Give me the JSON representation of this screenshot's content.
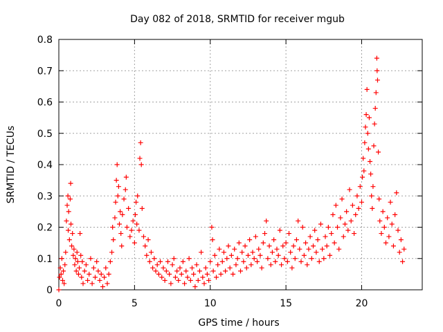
{
  "chart_data": {
    "type": "scatter",
    "title": "Day 082 of 2018, SRMTID for receiver mgub",
    "xlabel": "GPS time / hours",
    "ylabel": "SRMTID / TECUs",
    "xlim": [
      0,
      24
    ],
    "ylim": [
      0,
      0.8
    ],
    "xticks": [
      0,
      5,
      10,
      15,
      20
    ],
    "yticks": [
      0,
      0.1,
      0.2,
      0.3,
      0.4,
      0.5,
      0.6,
      0.7,
      0.8
    ],
    "xtick_labels": [
      "0",
      "5",
      "10",
      "15",
      "20"
    ],
    "ytick_labels": [
      "0",
      "0.1",
      "0.2",
      "0.3",
      "0.4",
      "0.5",
      "0.6",
      "0.7",
      "0.8"
    ],
    "grid": true,
    "marker": "+",
    "color": "#ff0000",
    "series": [
      {
        "name": "SRMTID",
        "points": [
          [
            0.0,
            0.0
          ],
          [
            0.05,
            0.04
          ],
          [
            0.1,
            0.07
          ],
          [
            0.15,
            0.05
          ],
          [
            0.2,
            0.1
          ],
          [
            0.25,
            0.03
          ],
          [
            0.3,
            0.06
          ],
          [
            0.35,
            0.02
          ],
          [
            0.4,
            0.08
          ],
          [
            0.45,
            0.12
          ],
          [
            0.5,
            0.22
          ],
          [
            0.55,
            0.27
          ],
          [
            0.6,
            0.3
          ],
          [
            0.62,
            0.19
          ],
          [
            0.65,
            0.25
          ],
          [
            0.7,
            0.16
          ],
          [
            0.75,
            0.29
          ],
          [
            0.78,
            0.34
          ],
          [
            0.8,
            0.21
          ],
          [
            0.85,
            0.14
          ],
          [
            0.9,
            0.18
          ],
          [
            0.95,
            0.11
          ],
          [
            1.0,
            0.13
          ],
          [
            1.05,
            0.08
          ],
          [
            1.1,
            0.1
          ],
          [
            1.15,
            0.06
          ],
          [
            1.2,
            0.12
          ],
          [
            1.25,
            0.09
          ],
          [
            1.3,
            0.05
          ],
          [
            1.35,
            0.07
          ],
          [
            1.4,
            0.18
          ],
          [
            1.45,
            0.11
          ],
          [
            1.5,
            0.04
          ],
          [
            1.55,
            0.09
          ],
          [
            1.6,
            0.02
          ],
          [
            1.7,
            0.06
          ],
          [
            1.8,
            0.08
          ],
          [
            1.9,
            0.03
          ],
          [
            2.0,
            0.05
          ],
          [
            2.1,
            0.1
          ],
          [
            2.2,
            0.02
          ],
          [
            2.3,
            0.07
          ],
          [
            2.4,
            0.04
          ],
          [
            2.5,
            0.09
          ],
          [
            2.6,
            0.06
          ],
          [
            2.7,
            0.03
          ],
          [
            2.8,
            0.05
          ],
          [
            2.9,
            0.01
          ],
          [
            3.0,
            0.04
          ],
          [
            3.1,
            0.07
          ],
          [
            3.2,
            0.02
          ],
          [
            3.3,
            0.05
          ],
          [
            3.4,
            0.09
          ],
          [
            3.5,
            0.12
          ],
          [
            3.55,
            0.2
          ],
          [
            3.6,
            0.16
          ],
          [
            3.7,
            0.23
          ],
          [
            3.75,
            0.28
          ],
          [
            3.8,
            0.35
          ],
          [
            3.85,
            0.4
          ],
          [
            3.9,
            0.3
          ],
          [
            3.95,
            0.33
          ],
          [
            4.0,
            0.21
          ],
          [
            4.05,
            0.25
          ],
          [
            4.1,
            0.18
          ],
          [
            4.15,
            0.14
          ],
          [
            4.2,
            0.24
          ],
          [
            4.3,
            0.29
          ],
          [
            4.4,
            0.32
          ],
          [
            4.45,
            0.36
          ],
          [
            4.5,
            0.2
          ],
          [
            4.6,
            0.26
          ],
          [
            4.7,
            0.17
          ],
          [
            4.8,
            0.19
          ],
          [
            4.9,
            0.22
          ],
          [
            5.0,
            0.15
          ],
          [
            5.05,
            0.24
          ],
          [
            5.1,
            0.28
          ],
          [
            5.15,
            0.21
          ],
          [
            5.2,
            0.3
          ],
          [
            5.3,
            0.19
          ],
          [
            5.35,
            0.42
          ],
          [
            5.4,
            0.47
          ],
          [
            5.45,
            0.4
          ],
          [
            5.5,
            0.26
          ],
          [
            5.6,
            0.17
          ],
          [
            5.7,
            0.14
          ],
          [
            5.8,
            0.11
          ],
          [
            5.9,
            0.16
          ],
          [
            6.0,
            0.09
          ],
          [
            6.1,
            0.12
          ],
          [
            6.2,
            0.07
          ],
          [
            6.3,
            0.1
          ],
          [
            6.4,
            0.06
          ],
          [
            6.5,
            0.08
          ],
          [
            6.6,
            0.05
          ],
          [
            6.7,
            0.09
          ],
          [
            6.8,
            0.04
          ],
          [
            6.9,
            0.07
          ],
          [
            7.0,
            0.03
          ],
          [
            7.1,
            0.06
          ],
          [
            7.2,
            0.09
          ],
          [
            7.3,
            0.05
          ],
          [
            7.4,
            0.02
          ],
          [
            7.5,
            0.08
          ],
          [
            7.6,
            0.1
          ],
          [
            7.7,
            0.04
          ],
          [
            7.8,
            0.06
          ],
          [
            7.9,
            0.03
          ],
          [
            8.0,
            0.07
          ],
          [
            8.1,
            0.05
          ],
          [
            8.2,
            0.09
          ],
          [
            8.3,
            0.02
          ],
          [
            8.4,
            0.06
          ],
          [
            8.5,
            0.04
          ],
          [
            8.6,
            0.1
          ],
          [
            8.7,
            0.03
          ],
          [
            8.8,
            0.07
          ],
          [
            8.9,
            0.05
          ],
          [
            9.0,
            0.01
          ],
          [
            9.1,
            0.08
          ],
          [
            9.2,
            0.03
          ],
          [
            9.3,
            0.06
          ],
          [
            9.4,
            0.12
          ],
          [
            9.5,
            0.04
          ],
          [
            9.6,
            0.02
          ],
          [
            9.7,
            0.07
          ],
          [
            9.8,
            0.05
          ],
          [
            9.9,
            0.03
          ],
          [
            10.0,
            0.09
          ],
          [
            10.1,
            0.2
          ],
          [
            10.15,
            0.16
          ],
          [
            10.2,
            0.06
          ],
          [
            10.3,
            0.11
          ],
          [
            10.4,
            0.04
          ],
          [
            10.5,
            0.08
          ],
          [
            10.6,
            0.13
          ],
          [
            10.7,
            0.05
          ],
          [
            10.8,
            0.09
          ],
          [
            10.9,
            0.12
          ],
          [
            11.0,
            0.06
          ],
          [
            11.1,
            0.1
          ],
          [
            11.2,
            0.14
          ],
          [
            11.3,
            0.07
          ],
          [
            11.4,
            0.11
          ],
          [
            11.5,
            0.05
          ],
          [
            11.6,
            0.13
          ],
          [
            11.7,
            0.08
          ],
          [
            11.8,
            0.1
          ],
          [
            11.9,
            0.15
          ],
          [
            12.0,
            0.06
          ],
          [
            12.1,
            0.12
          ],
          [
            12.2,
            0.09
          ],
          [
            12.3,
            0.14
          ],
          [
            12.4,
            0.07
          ],
          [
            12.5,
            0.11
          ],
          [
            12.6,
            0.16
          ],
          [
            12.7,
            0.08
          ],
          [
            12.8,
            0.12
          ],
          [
            12.9,
            0.1
          ],
          [
            13.0,
            0.17
          ],
          [
            13.1,
            0.09
          ],
          [
            13.2,
            0.13
          ],
          [
            13.3,
            0.11
          ],
          [
            13.4,
            0.07
          ],
          [
            13.5,
            0.15
          ],
          [
            13.6,
            0.18
          ],
          [
            13.7,
            0.22
          ],
          [
            13.8,
            0.1
          ],
          [
            13.9,
            0.14
          ],
          [
            14.0,
            0.08
          ],
          [
            14.1,
            0.12
          ],
          [
            14.2,
            0.16
          ],
          [
            14.3,
            0.09
          ],
          [
            14.4,
            0.13
          ],
          [
            14.5,
            0.11
          ],
          [
            14.6,
            0.19
          ],
          [
            14.7,
            0.08
          ],
          [
            14.8,
            0.14
          ],
          [
            14.9,
            0.1
          ],
          [
            15.0,
            0.15
          ],
          [
            15.1,
            0.09
          ],
          [
            15.2,
            0.18
          ],
          [
            15.3,
            0.12
          ],
          [
            15.4,
            0.07
          ],
          [
            15.5,
            0.14
          ],
          [
            15.6,
            0.1
          ],
          [
            15.7,
            0.16
          ],
          [
            15.8,
            0.22
          ],
          [
            15.9,
            0.13
          ],
          [
            16.0,
            0.09
          ],
          [
            16.1,
            0.2
          ],
          [
            16.2,
            0.11
          ],
          [
            16.3,
            0.15
          ],
          [
            16.4,
            0.08
          ],
          [
            16.5,
            0.13
          ],
          [
            16.6,
            0.17
          ],
          [
            16.7,
            0.1
          ],
          [
            16.8,
            0.14
          ],
          [
            16.9,
            0.19
          ],
          [
            17.0,
            0.12
          ],
          [
            17.1,
            0.16
          ],
          [
            17.2,
            0.09
          ],
          [
            17.3,
            0.21
          ],
          [
            17.4,
            0.13
          ],
          [
            17.5,
            0.1
          ],
          [
            17.6,
            0.17
          ],
          [
            17.7,
            0.14
          ],
          [
            17.8,
            0.2
          ],
          [
            17.9,
            0.11
          ],
          [
            18.0,
            0.18
          ],
          [
            18.1,
            0.24
          ],
          [
            18.2,
            0.15
          ],
          [
            18.3,
            0.27
          ],
          [
            18.4,
            0.2
          ],
          [
            18.5,
            0.13
          ],
          [
            18.6,
            0.23
          ],
          [
            18.7,
            0.29
          ],
          [
            18.8,
            0.17
          ],
          [
            18.9,
            0.21
          ],
          [
            19.0,
            0.25
          ],
          [
            19.1,
            0.19
          ],
          [
            19.2,
            0.32
          ],
          [
            19.3,
            0.22
          ],
          [
            19.4,
            0.27
          ],
          [
            19.5,
            0.18
          ],
          [
            19.6,
            0.24
          ],
          [
            19.7,
            0.3
          ],
          [
            19.8,
            0.26
          ],
          [
            19.9,
            0.33
          ],
          [
            20.0,
            0.28
          ],
          [
            20.05,
            0.36
          ],
          [
            20.1,
            0.42
          ],
          [
            20.15,
            0.38
          ],
          [
            20.2,
            0.47
          ],
          [
            20.25,
            0.52
          ],
          [
            20.3,
            0.56
          ],
          [
            20.35,
            0.64
          ],
          [
            20.4,
            0.5
          ],
          [
            20.45,
            0.45
          ],
          [
            20.5,
            0.55
          ],
          [
            20.55,
            0.41
          ],
          [
            20.6,
            0.37
          ],
          [
            20.65,
            0.3
          ],
          [
            20.7,
            0.26
          ],
          [
            20.75,
            0.33
          ],
          [
            20.8,
            0.46
          ],
          [
            20.85,
            0.53
          ],
          [
            20.9,
            0.58
          ],
          [
            20.95,
            0.63
          ],
          [
            21.0,
            0.74
          ],
          [
            21.02,
            0.7
          ],
          [
            21.05,
            0.67
          ],
          [
            21.1,
            0.44
          ],
          [
            21.15,
            0.29
          ],
          [
            21.2,
            0.22
          ],
          [
            21.3,
            0.18
          ],
          [
            21.4,
            0.25
          ],
          [
            21.5,
            0.2
          ],
          [
            21.6,
            0.15
          ],
          [
            21.7,
            0.23
          ],
          [
            21.8,
            0.17
          ],
          [
            21.9,
            0.28
          ],
          [
            22.0,
            0.21
          ],
          [
            22.1,
            0.14
          ],
          [
            22.2,
            0.24
          ],
          [
            22.3,
            0.31
          ],
          [
            22.4,
            0.19
          ],
          [
            22.5,
            0.12
          ],
          [
            22.6,
            0.16
          ],
          [
            22.7,
            0.09
          ],
          [
            22.8,
            0.13
          ]
        ]
      }
    ]
  }
}
